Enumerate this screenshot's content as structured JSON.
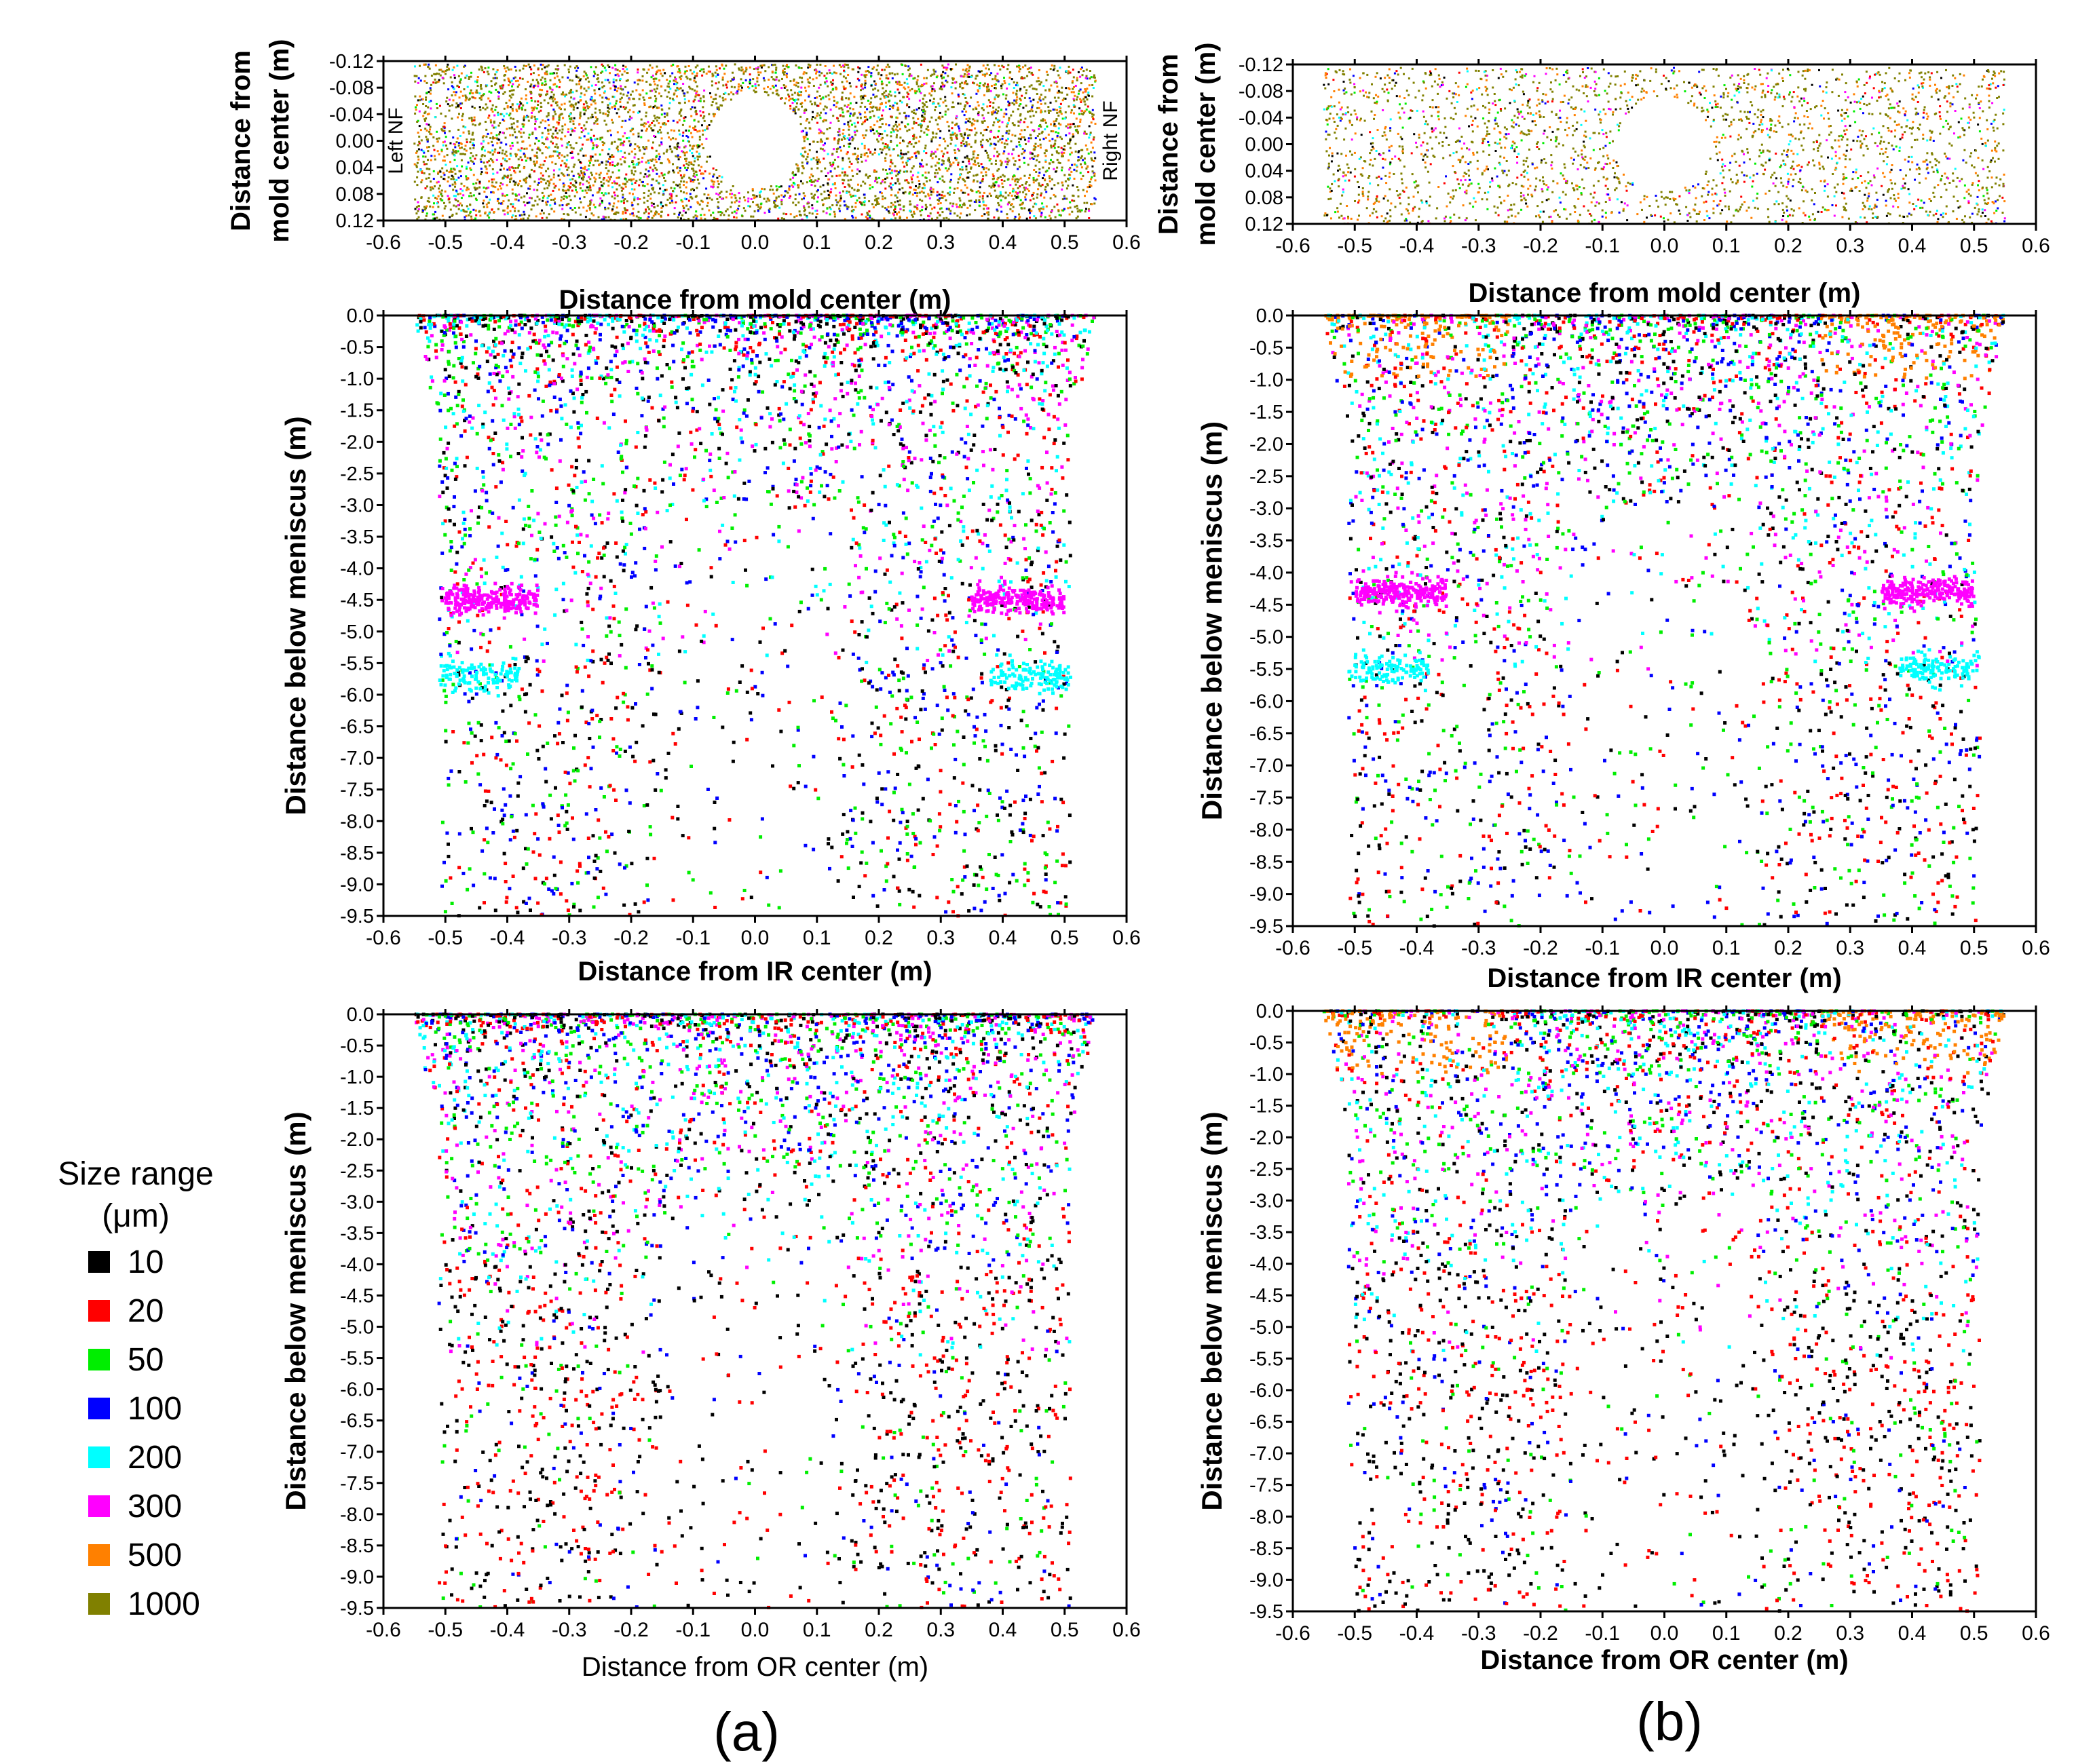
{
  "chart_data": [
    {
      "id": "a-top",
      "type": "scatter",
      "panel": "(a)",
      "xlabel": "Distance from mold center (m)",
      "ylabel": [
        "Distance from",
        "mold center (m)"
      ],
      "xlim": [
        -0.6,
        0.6
      ],
      "ylim": [
        -0.12,
        0.12
      ],
      "y_inverted": true,
      "yticks": [
        "-0.12",
        "-0.08",
        "-0.04",
        "0.00",
        "0.04",
        "0.08",
        "0.12"
      ],
      "xticks": [
        "-0.6",
        "-0.5",
        "-0.4",
        "-0.3",
        "-0.2",
        "-0.1",
        "0.0",
        "0.1",
        "0.2",
        "0.3",
        "0.4",
        "0.5",
        "0.6"
      ],
      "annotations": [
        "Left NF",
        "Right NF"
      ],
      "density": "high",
      "dominant": [
        "1000",
        "500"
      ],
      "xlabel_bold": true,
      "ylabel_bold": true
    },
    {
      "id": "b-top",
      "type": "scatter",
      "panel": "(b)",
      "xlabel": "Distance from mold center (m)",
      "ylabel": [
        "Distance from",
        "mold center (m)"
      ],
      "xlim": [
        -0.6,
        0.6
      ],
      "ylim": [
        -0.12,
        0.12
      ],
      "y_inverted": true,
      "yticks": [
        "-0.12",
        "-0.08",
        "-0.04",
        "0.00",
        "0.04",
        "0.08",
        "0.12"
      ],
      "xticks": [
        "-0.6",
        "-0.5",
        "-0.4",
        "-0.3",
        "-0.2",
        "-0.1",
        "0.0",
        "0.1",
        "0.2",
        "0.3",
        "0.4",
        "0.5",
        "0.6"
      ],
      "annotations": [],
      "density": "medium",
      "dominant": [
        "1000",
        "500"
      ],
      "xlabel_bold": true,
      "ylabel_bold": true
    },
    {
      "id": "a-ir",
      "type": "scatter",
      "panel": "(a)",
      "xlabel": "Distance from IR center (m)",
      "ylabel": "Distance below meniscus (m)",
      "xlim": [
        -0.6,
        0.6
      ],
      "ylim": [
        0,
        -9.5
      ],
      "yticks": [
        "0.0",
        "-0.5",
        "-1.0",
        "-1.5",
        "-2.0",
        "-2.5",
        "-3.0",
        "-3.5",
        "-4.0",
        "-4.5",
        "-5.0",
        "-5.5",
        "-6.0",
        "-6.5",
        "-7.0",
        "-7.5",
        "-8.0",
        "-8.5",
        "-9.0",
        "-9.5"
      ],
      "xticks": [
        "-0.6",
        "-0.5",
        "-0.4",
        "-0.3",
        "-0.2",
        "-0.1",
        "0.0",
        "0.1",
        "0.2",
        "0.3",
        "0.4",
        "0.5",
        "0.6"
      ],
      "band_300_depth": 4.5,
      "density": "medium",
      "xlabel_bold": true,
      "ylabel_bold": true
    },
    {
      "id": "b-ir",
      "type": "scatter",
      "panel": "(b)",
      "xlabel": "Distance from IR center (m)",
      "ylabel": "Distance below meniscus (m)",
      "xlim": [
        -0.6,
        0.6
      ],
      "ylim": [
        0,
        -9.5
      ],
      "yticks": [
        "0.0",
        "-0.5",
        "-1.0",
        "-1.5",
        "-2.0",
        "-2.5",
        "-3.0",
        "-3.5",
        "-4.0",
        "-4.5",
        "-5.0",
        "-5.5",
        "-6.0",
        "-6.5",
        "-7.0",
        "-7.5",
        "-8.0",
        "-8.5",
        "-9.0",
        "-9.5"
      ],
      "xticks": [
        "-0.6",
        "-0.5",
        "-0.4",
        "-0.3",
        "-0.2",
        "-0.1",
        "0.0",
        "0.1",
        "0.2",
        "0.3",
        "0.4",
        "0.5",
        "0.6"
      ],
      "band_300_depth": 4.3,
      "density": "medium",
      "orange_top": true,
      "xlabel_bold": true,
      "ylabel_bold": true
    },
    {
      "id": "a-or",
      "type": "scatter",
      "panel": "(a)",
      "xlabel": "Distance from OR center (m)",
      "ylabel": "Distance below meniscus (m)",
      "xlim": [
        -0.6,
        0.6
      ],
      "ylim": [
        0,
        -9.5
      ],
      "yticks": [
        "0.0",
        "-0.5",
        "-1.0",
        "-1.5",
        "-2.0",
        "-2.5",
        "-3.0",
        "-3.5",
        "-4.0",
        "-4.5",
        "-5.0",
        "-5.5",
        "-6.0",
        "-6.5",
        "-7.0",
        "-7.5",
        "-8.0",
        "-8.5",
        "-9.0",
        "-9.5"
      ],
      "xticks": [
        "-0.6",
        "-0.5",
        "-0.4",
        "-0.3",
        "-0.2",
        "-0.1",
        "0.0",
        "0.1",
        "0.2",
        "0.3",
        "0.4",
        "0.5",
        "0.6"
      ],
      "density": "dense-top",
      "xlabel_bold": false,
      "ylabel_bold": true
    },
    {
      "id": "b-or",
      "type": "scatter",
      "panel": "(b)",
      "xlabel": "Distance from OR center (m)",
      "ylabel": "Distance below meniscus (m)",
      "xlim": [
        -0.6,
        0.6
      ],
      "ylim": [
        0,
        -9.5
      ],
      "yticks": [
        "0.0",
        "-0.5",
        "-1.0",
        "-1.5",
        "-2.0",
        "-2.5",
        "-3.0",
        "-3.5",
        "-4.0",
        "-4.5",
        "-5.0",
        "-5.5",
        "-6.0",
        "-6.5",
        "-7.0",
        "-7.5",
        "-8.0",
        "-8.5",
        "-9.0",
        "-9.5"
      ],
      "xticks": [
        "-0.6",
        "-0.5",
        "-0.4",
        "-0.3",
        "-0.2",
        "-0.1",
        "0.0",
        "0.1",
        "0.2",
        "0.3",
        "0.4",
        "0.5",
        "0.6"
      ],
      "density": "dense-top",
      "orange_top": true,
      "xlabel_bold": true,
      "ylabel_bold": true
    }
  ],
  "legend": {
    "title_line1": "Size range",
    "title_line2": "(μm)",
    "items": [
      {
        "label": "10",
        "color": "#000000"
      },
      {
        "label": "20",
        "color": "#ff0000"
      },
      {
        "label": "50",
        "color": "#00ee00"
      },
      {
        "label": "100",
        "color": "#0000ff"
      },
      {
        "label": "200",
        "color": "#00ffff"
      },
      {
        "label": "300",
        "color": "#ff00ff"
      },
      {
        "label": "500",
        "color": "#ff8000"
      },
      {
        "label": "1000",
        "color": "#808000"
      }
    ]
  },
  "panel_labels": {
    "a": "(a)",
    "b": "(b)"
  }
}
